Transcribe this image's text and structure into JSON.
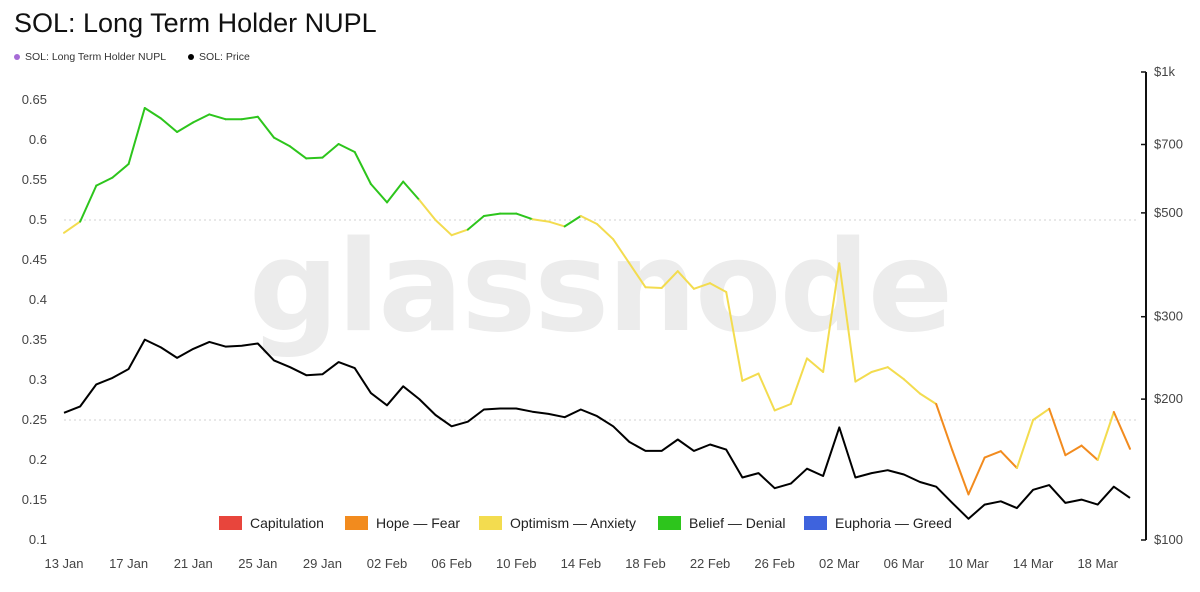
{
  "chart_data": {
    "type": "line",
    "title": "SOL: Long Term Holder NUPL",
    "watermark": "glassnode",
    "legend_top": [
      {
        "name": "SOL: Long Term Holder NUPL",
        "color": "#a66bd6"
      },
      {
        "name": "SOL: Price",
        "color": "#000000"
      }
    ],
    "legend_bottom": [
      {
        "name": "Capitulation",
        "color": "#e8453c"
      },
      {
        "name": "Hope — Fear",
        "color": "#f28b1e"
      },
      {
        "name": "Optimism — Anxiety",
        "color": "#f3dc4f"
      },
      {
        "name": "Belief — Denial",
        "color": "#2dc51c"
      },
      {
        "name": "Euphoria — Greed",
        "color": "#3e63dd"
      }
    ],
    "x_ticks": [
      "13 Jan",
      "17 Jan",
      "21 Jan",
      "25 Jan",
      "29 Jan",
      "02 Feb",
      "06 Feb",
      "10 Feb",
      "14 Feb",
      "18 Feb",
      "22 Feb",
      "26 Feb",
      "02 Mar",
      "06 Mar",
      "10 Mar",
      "14 Mar",
      "18 Mar"
    ],
    "y_left": {
      "ticks": [
        "0.65",
        "0.6",
        "0.55",
        "0.5",
        "0.45",
        "0.4",
        "0.35",
        "0.3",
        "0.25",
        "0.2",
        "0.15",
        "0.1"
      ],
      "values": [
        0.65,
        0.6,
        0.55,
        0.5,
        0.45,
        0.4,
        0.35,
        0.3,
        0.25,
        0.2,
        0.15,
        0.1
      ],
      "range": [
        0.1,
        0.685
      ],
      "reference_lines": [
        0.5,
        0.25
      ]
    },
    "y_right": {
      "scale": "log",
      "ticks": [
        "$1k",
        "$700",
        "$500",
        "$300",
        "$200",
        "$100"
      ],
      "values": [
        1000,
        700,
        500,
        300,
        200,
        100
      ],
      "range": [
        100,
        1000
      ]
    },
    "series": [
      {
        "name": "SOL: Long Term Holder NUPL",
        "axis": "left",
        "start_date": "13 Jan",
        "values": [
          0.484,
          0.498,
          0.543,
          0.553,
          0.57,
          0.64,
          0.627,
          0.61,
          0.622,
          0.632,
          0.626,
          0.626,
          0.629,
          0.603,
          0.592,
          0.577,
          0.578,
          0.595,
          0.585,
          0.545,
          0.522,
          0.548,
          0.525,
          0.5,
          0.481,
          0.488,
          0.505,
          0.508,
          0.508,
          0.501,
          0.498,
          0.492,
          0.505,
          0.495,
          0.476,
          0.446,
          0.416,
          0.415,
          0.436,
          0.414,
          0.421,
          0.41,
          0.299,
          0.308,
          0.262,
          0.27,
          0.327,
          0.31,
          0.446,
          0.298,
          0.31,
          0.316,
          0.301,
          0.283,
          0.27,
          0.212,
          0.157,
          0.203,
          0.211,
          0.19,
          0.25,
          0.264,
          0.206,
          0.218,
          0.2,
          0.26,
          0.214
        ],
        "zones": [
          "Optimism — Anxiety",
          "Optimism — Anxiety",
          "Belief — Denial",
          "Belief — Denial",
          "Belief — Denial",
          "Belief — Denial",
          "Belief — Denial",
          "Belief — Denial",
          "Belief — Denial",
          "Belief — Denial",
          "Belief — Denial",
          "Belief — Denial",
          "Belief — Denial",
          "Belief — Denial",
          "Belief — Denial",
          "Belief — Denial",
          "Belief — Denial",
          "Belief — Denial",
          "Belief — Denial",
          "Belief — Denial",
          "Belief — Denial",
          "Belief — Denial",
          "Belief — Denial",
          "Optimism — Anxiety",
          "Optimism — Anxiety",
          "Optimism — Anxiety",
          "Belief — Denial",
          "Belief — Denial",
          "Belief — Denial",
          "Belief — Denial",
          "Optimism — Anxiety",
          "Optimism — Anxiety",
          "Belief — Denial",
          "Optimism — Anxiety",
          "Optimism — Anxiety",
          "Optimism — Anxiety",
          "Optimism — Anxiety",
          "Optimism — Anxiety",
          "Optimism — Anxiety",
          "Optimism — Anxiety",
          "Optimism — Anxiety",
          "Optimism — Anxiety",
          "Optimism — Anxiety",
          "Optimism — Anxiety",
          "Optimism — Anxiety",
          "Optimism — Anxiety",
          "Optimism — Anxiety",
          "Optimism — Anxiety",
          "Optimism — Anxiety",
          "Optimism — Anxiety",
          "Optimism — Anxiety",
          "Optimism — Anxiety",
          "Optimism — Anxiety",
          "Optimism — Anxiety",
          "Optimism — Anxiety",
          "Hope — Fear",
          "Hope — Fear",
          "Hope — Fear",
          "Hope — Fear",
          "Hope — Fear",
          "Optimism — Anxiety",
          "Optimism — Anxiety",
          "Hope — Fear",
          "Hope — Fear",
          "Hope — Fear",
          "Optimism — Anxiety",
          "Hope — Fear"
        ]
      },
      {
        "name": "SOL: Price",
        "axis": "right",
        "start_date": "13 Jan",
        "color": "#000000",
        "values": [
          187,
          193,
          215,
          222,
          232,
          268,
          258,
          245,
          256,
          265,
          259,
          260,
          263,
          242,
          234,
          225,
          226,
          240,
          233,
          206,
          194,
          213,
          200,
          185,
          175,
          179,
          190,
          191,
          191,
          188,
          186,
          183,
          190,
          184,
          175,
          162,
          155,
          155,
          164,
          155,
          160,
          156,
          136,
          139,
          129,
          132,
          142,
          137,
          174,
          136,
          139,
          141,
          138,
          133,
          130,
          120,
          111,
          119,
          121,
          117,
          128,
          131,
          120,
          122,
          119,
          130,
          123
        ]
      }
    ]
  }
}
